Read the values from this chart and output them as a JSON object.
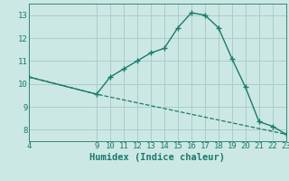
{
  "xlabel": "Humidex (Indice chaleur)",
  "bg_color": "#cce8e4",
  "line_color": "#1a7a6e",
  "grid_color": "#aaccca",
  "curve_x": [
    4,
    9,
    10,
    11,
    12,
    13,
    14,
    15,
    16,
    17,
    18,
    19,
    20,
    21,
    22,
    23
  ],
  "curve_y": [
    10.3,
    9.55,
    10.3,
    10.65,
    11.0,
    11.35,
    11.55,
    12.45,
    13.1,
    13.0,
    12.45,
    11.1,
    9.85,
    8.35,
    8.15,
    7.8
  ],
  "line_x": [
    4,
    9,
    23
  ],
  "line_y": [
    10.3,
    9.55,
    7.8
  ],
  "xlim": [
    4,
    23
  ],
  "ylim": [
    7.5,
    13.5
  ],
  "xticks": [
    4,
    9,
    10,
    11,
    12,
    13,
    14,
    15,
    16,
    17,
    18,
    19,
    20,
    21,
    22,
    23
  ],
  "yticks": [
    8,
    9,
    10,
    11,
    12,
    13
  ],
  "xlabel_fontsize": 7.5,
  "tick_fontsize": 6.5
}
